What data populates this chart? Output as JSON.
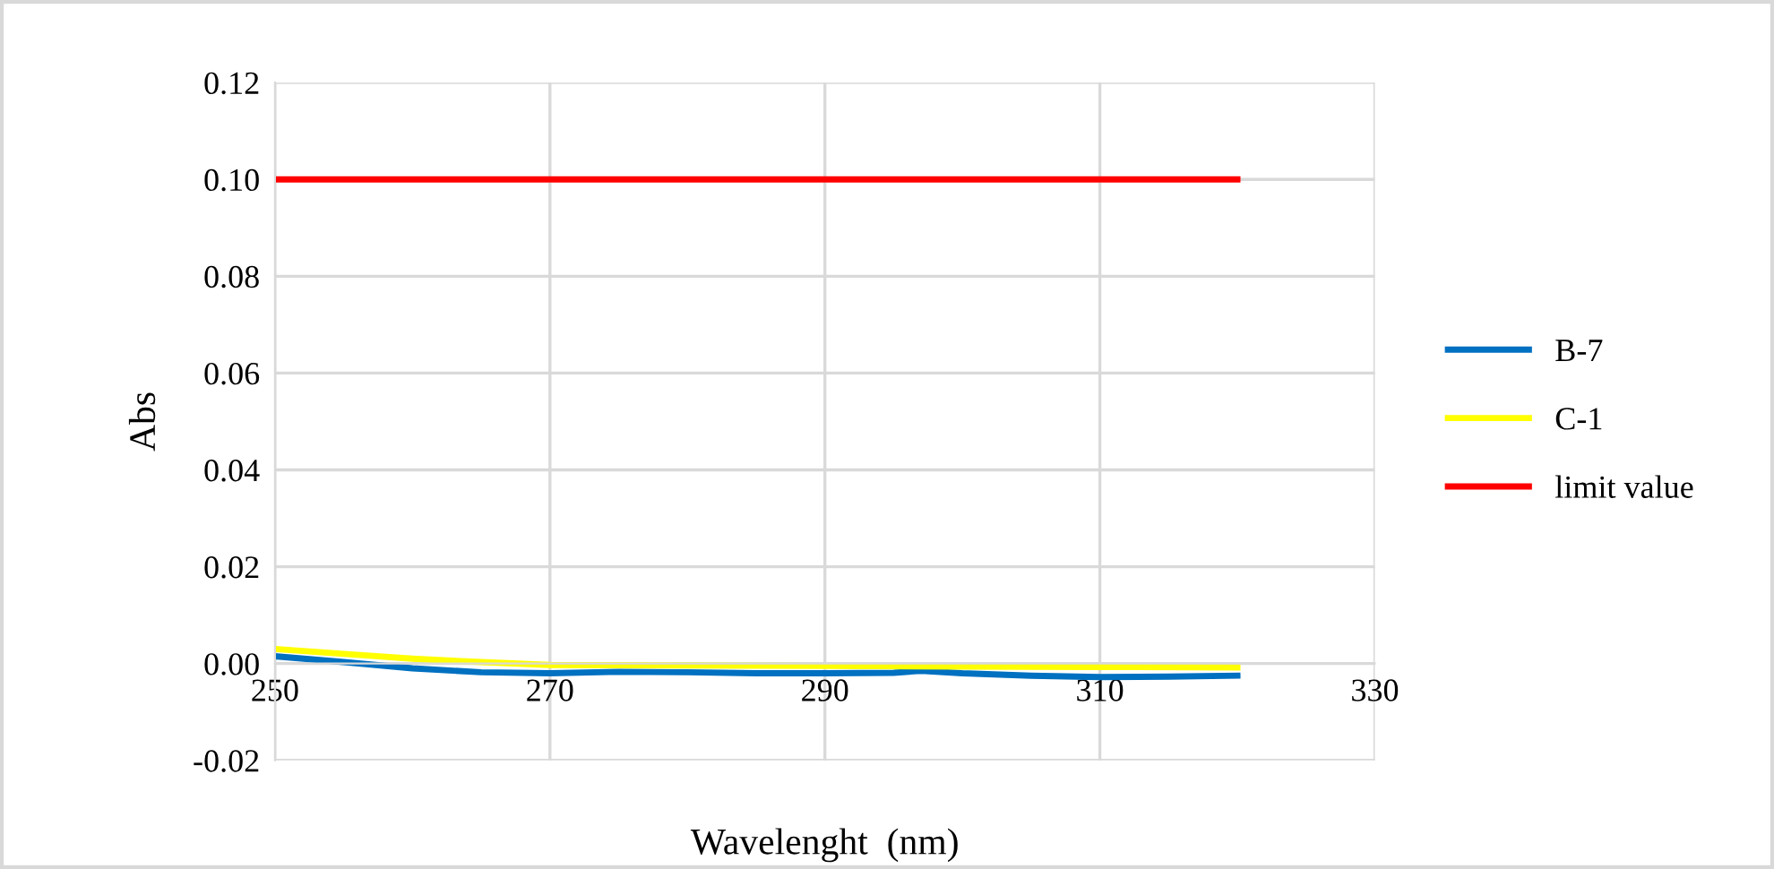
{
  "chart_data": {
    "type": "line",
    "xlabel": "Wavelenght  (nm)",
    "ylabel": "Abs",
    "xlim": [
      250,
      330
    ],
    "xticks": [
      250,
      270,
      290,
      310,
      330
    ],
    "ylim": [
      -0.02,
      0.12
    ],
    "yticks": [
      {
        "value": -0.02,
        "label": "-0.02"
      },
      {
        "value": 0,
        "label": "0.00"
      },
      {
        "value": 0.02,
        "label": "0.02"
      },
      {
        "value": 0.04,
        "label": "0.04"
      },
      {
        "value": 0.06,
        "label": "0.06"
      },
      {
        "value": 0.08,
        "label": "0.08"
      },
      {
        "value": 0.1,
        "label": "0.10"
      },
      {
        "value": 0.12,
        "label": "0.12"
      }
    ],
    "grid": true,
    "legend": "right",
    "marker": "none",
    "line_style": "solid",
    "series": [
      {
        "name": "B-7",
        "color": "#0070c0",
        "x": [
          250,
          255,
          260,
          265,
          270,
          275,
          280,
          285,
          290,
          295,
          297,
          300,
          305,
          310,
          315,
          320
        ],
        "values": [
          0.0015,
          0.0003,
          -0.001,
          -0.0018,
          -0.002,
          -0.0017,
          -0.0018,
          -0.002,
          -0.002,
          -0.0019,
          -0.0015,
          -0.002,
          -0.0025,
          -0.0028,
          -0.0027,
          -0.0025
        ]
      },
      {
        "name": "C-1",
        "color": "#ffff00",
        "x": [
          250,
          255,
          260,
          265,
          270,
          280,
          290,
          300,
          310,
          320
        ],
        "values": [
          0.003,
          0.002,
          0.001,
          0.0003,
          -0.0003,
          -0.0004,
          -0.0005,
          -0.0006,
          -0.0007,
          -0.0008
        ]
      },
      {
        "name": "limit value",
        "color": "#ff0000",
        "x": [
          250,
          320
        ],
        "values": [
          0.1,
          0.1
        ]
      }
    ]
  }
}
